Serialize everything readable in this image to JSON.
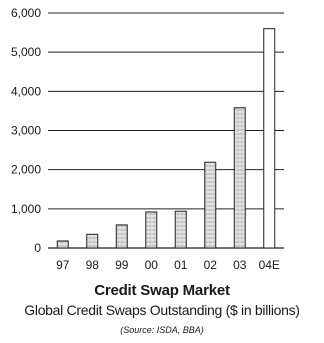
{
  "chart_data": {
    "type": "bar",
    "categories": [
      "97",
      "98",
      "99",
      "00",
      "01",
      "02",
      "03",
      "04E"
    ],
    "values": [
      180,
      350,
      590,
      920,
      940,
      2190,
      3580,
      5600
    ],
    "ylim": [
      0,
      6000
    ],
    "yticks": [
      "0",
      "1,000",
      "2,000",
      "3,000",
      "4,000",
      "5,000",
      "6,000"
    ],
    "grid": true,
    "title": "Credit Swap Market",
    "subtitle": "Global Credit Swaps Outstanding ($ in billions)",
    "source": "(Source: ISDA, BBA)",
    "colors": {
      "bar_fill": "#e8e8e8",
      "bar_fill_projected": "#ffffff",
      "bar_stroke": "#222222",
      "grid": "#222222",
      "text": "#1a1a1a"
    }
  }
}
